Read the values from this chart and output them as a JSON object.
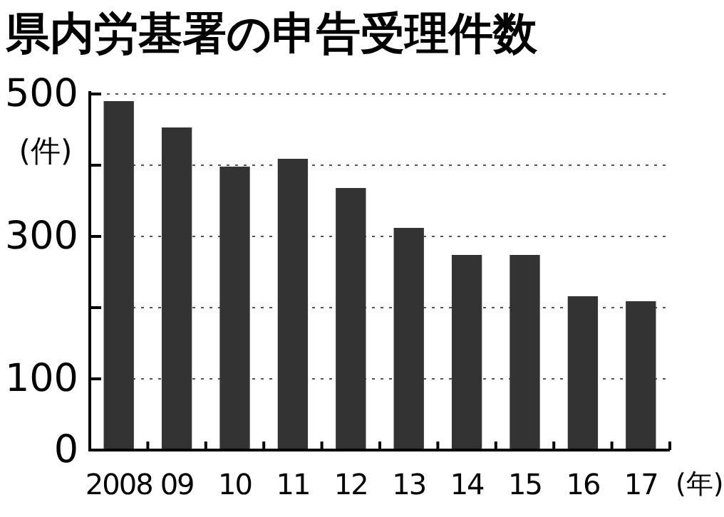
{
  "chart_data": {
    "type": "bar",
    "title": "県内労基署の申告受理件数",
    "ylabel": "(件)",
    "xlabel": "(年)",
    "categories": [
      "2008",
      "09",
      "10",
      "11",
      "12",
      "13",
      "14",
      "15",
      "16",
      "17"
    ],
    "values": [
      490,
      453,
      398,
      409,
      368,
      312,
      274,
      274,
      216,
      209
    ],
    "color": "#333333",
    "ylim": [
      0,
      500
    ],
    "yticks": [
      0,
      100,
      {
        "value": 200,
        "label": null
      },
      300,
      {
        "value": 400,
        "label": null
      },
      500
    ],
    "grid": "y"
  }
}
